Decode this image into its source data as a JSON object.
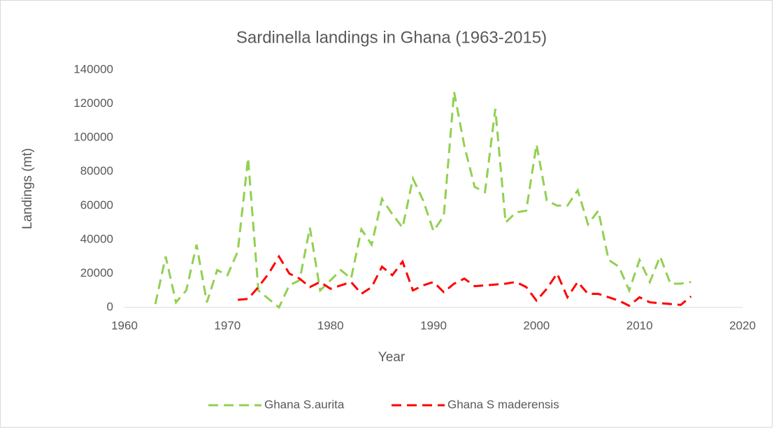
{
  "chart_data": {
    "type": "line",
    "title": "Sardinella landings in Ghana (1963-2015)",
    "x_label": "Year",
    "y_label": "Landings (mt)",
    "x": [
      1963,
      1964,
      1965,
      1966,
      1967,
      1968,
      1969,
      1970,
      1971,
      1972,
      1973,
      1974,
      1975,
      1976,
      1977,
      1978,
      1979,
      1980,
      1981,
      1982,
      1983,
      1984,
      1985,
      1986,
      1987,
      1988,
      1989,
      1990,
      1991,
      1992,
      1993,
      1994,
      1995,
      1996,
      1997,
      1998,
      1999,
      2000,
      2001,
      2002,
      2003,
      2004,
      2005,
      2006,
      2007,
      2008,
      2009,
      2010,
      2011,
      2012,
      2013,
      2014,
      2015
    ],
    "series": [
      {
        "name": "Ghana S.aurita",
        "color": "#92d050",
        "values": [
          2000,
          30000,
          3000,
          10000,
          37000,
          3000,
          22000,
          19000,
          33000,
          88000,
          10000,
          5000,
          0,
          13000,
          16000,
          47000,
          10000,
          16000,
          22000,
          17000,
          46000,
          37000,
          64000,
          55000,
          47000,
          76000,
          63000,
          45000,
          54000,
          127000,
          95000,
          71000,
          68000,
          117000,
          50000,
          56000,
          57000,
          96000,
          63000,
          60000,
          60000,
          69000,
          49000,
          57000,
          28000,
          24000,
          10000,
          28000,
          15000,
          30000,
          14000,
          14000,
          15000
        ]
      },
      {
        "name": "Ghana S maderensis",
        "color": "#ff0000",
        "values": [
          null,
          null,
          null,
          null,
          null,
          null,
          null,
          null,
          4500,
          5000,
          12000,
          20000,
          30000,
          20000,
          17000,
          12000,
          15000,
          11000,
          13000,
          15000,
          8000,
          12000,
          24000,
          19000,
          27000,
          10000,
          13000,
          15000,
          9000,
          14000,
          17000,
          12500,
          13000,
          13500,
          14000,
          15000,
          12000,
          4000,
          11000,
          20000,
          6000,
          15000,
          8000,
          8000,
          6000,
          4000,
          1000,
          6000,
          3000,
          2500,
          2000,
          1500,
          6500
        ]
      }
    ],
    "xlim": [
      1960,
      2020
    ],
    "xticks": [
      1960,
      1970,
      1980,
      1990,
      2000,
      2010,
      2020
    ],
    "ylim": [
      0,
      140000
    ],
    "yticks": [
      0,
      20000,
      40000,
      60000,
      80000,
      100000,
      120000,
      140000
    ],
    "legend": "bottom",
    "grid": false
  }
}
